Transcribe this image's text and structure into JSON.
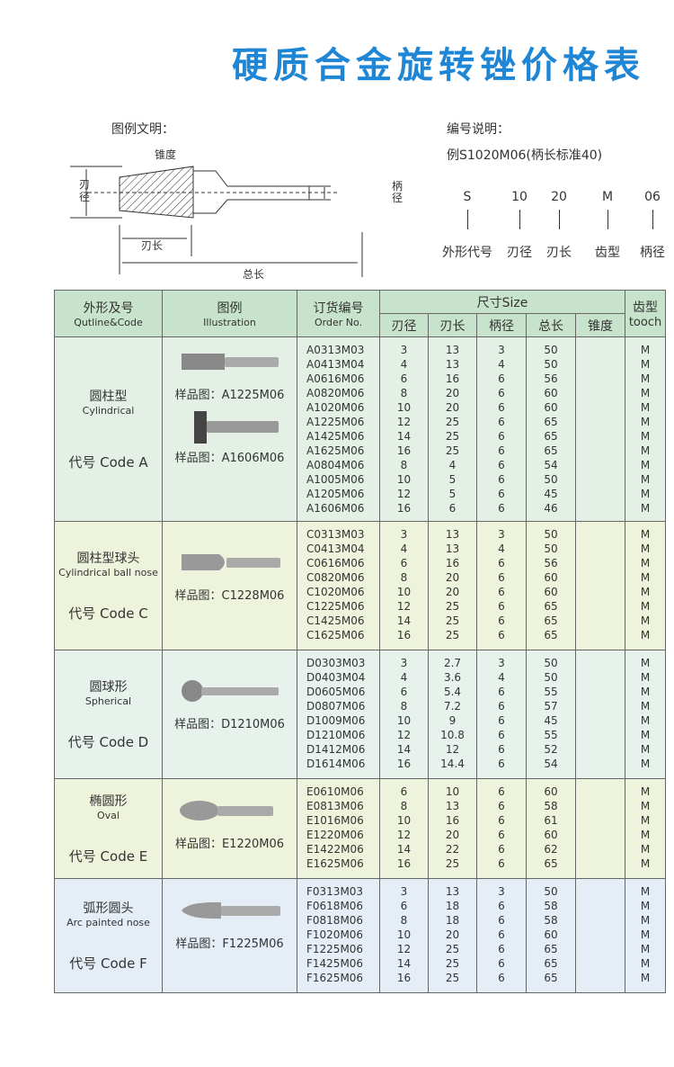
{
  "title": "硬质合金旋转锉价格表",
  "legend": {
    "heading": "图例文明：",
    "taper": "锥度",
    "blade_dia": "刃径",
    "shank_dia": "柄径",
    "blade_len": "刃长",
    "total_len": "总长"
  },
  "numbering": {
    "heading": "编号说明：",
    "example": "例S1020M06(柄长标准40)",
    "parts": [
      {
        "code": "S",
        "meaning": "外形代号"
      },
      {
        "code": "10",
        "meaning": "刃径"
      },
      {
        "code": "20",
        "meaning": "刃长"
      },
      {
        "code": "M",
        "meaning": "齿型"
      },
      {
        "code": "06",
        "meaning": "柄径"
      }
    ]
  },
  "table": {
    "headers": {
      "outline_cn": "外形及号",
      "outline_en": "Qutline&Code",
      "illus_cn": "图例",
      "illus_en": "Illustration",
      "order_cn": "订货编号",
      "order_en": "Order No.",
      "size": "尺寸Size",
      "blade_dia": "刃径",
      "blade_len": "刃长",
      "shank_dia": "柄径",
      "total_len": "总长",
      "taper": "锥度",
      "tooth_cn": "齿型",
      "tooth_en": "tooch"
    },
    "groups": [
      {
        "name_cn": "圆柱型",
        "name_en": "Cylindrical",
        "code": "代号 Code  A",
        "bg": "#e4f0e6",
        "samples": [
          "样品图：A1225M06",
          "样品图：A1606M06"
        ],
        "rows": [
          [
            "A0313M03",
            "3",
            "13",
            "3",
            "50",
            "",
            "M"
          ],
          [
            "A0413M04",
            "4",
            "13",
            "4",
            "50",
            "",
            "M"
          ],
          [
            "A0616M06",
            "6",
            "16",
            "6",
            "56",
            "",
            "M"
          ],
          [
            "A0820M06",
            "8",
            "20",
            "6",
            "60",
            "",
            "M"
          ],
          [
            "A1020M06",
            "10",
            "20",
            "6",
            "60",
            "",
            "M"
          ],
          [
            "A1225M06",
            "12",
            "25",
            "6",
            "65",
            "",
            "M"
          ],
          [
            "A1425M06",
            "14",
            "25",
            "6",
            "65",
            "",
            "M"
          ],
          [
            "A1625M06",
            "16",
            "25",
            "6",
            "65",
            "",
            "M"
          ],
          [
            "A0804M06",
            "8",
            "4",
            "6",
            "54",
            "",
            "M"
          ],
          [
            "A1005M06",
            "10",
            "5",
            "6",
            "50",
            "",
            "M"
          ],
          [
            "A1205M06",
            "12",
            "5",
            "6",
            "45",
            "",
            "M"
          ],
          [
            "A1606M06",
            "16",
            "6",
            "6",
            "46",
            "",
            "M"
          ]
        ]
      },
      {
        "name_cn": "圆柱型球头",
        "name_en": "Cylindrical ball nose",
        "code": "代号 Code C",
        "bg": "#eef4db",
        "samples": [
          "样品图：C1228M06"
        ],
        "rows": [
          [
            "C0313M03",
            "3",
            "13",
            "3",
            "50",
            "",
            "M"
          ],
          [
            "C0413M04",
            "4",
            "13",
            "4",
            "50",
            "",
            "M"
          ],
          [
            "C0616M06",
            "6",
            "16",
            "6",
            "56",
            "",
            "M"
          ],
          [
            "C0820M06",
            "8",
            "20",
            "6",
            "60",
            "",
            "M"
          ],
          [
            "C1020M06",
            "10",
            "20",
            "6",
            "60",
            "",
            "M"
          ],
          [
            "C1225M06",
            "12",
            "25",
            "6",
            "65",
            "",
            "M"
          ],
          [
            "C1425M06",
            "14",
            "25",
            "6",
            "65",
            "",
            "M"
          ],
          [
            "C1625M06",
            "16",
            "25",
            "6",
            "65",
            "",
            "M"
          ]
        ]
      },
      {
        "name_cn": "圆球形",
        "name_en": "Spherical",
        "code": "代号 Code D",
        "bg": "#e7f2ec",
        "samples": [
          "样品图：D1210M06"
        ],
        "rows": [
          [
            "D0303M03",
            "3",
            "2.7",
            "3",
            "50",
            "",
            "M"
          ],
          [
            "D0403M04",
            "4",
            "3.6",
            "4",
            "50",
            "",
            "M"
          ],
          [
            "D0605M06",
            "6",
            "5.4",
            "6",
            "55",
            "",
            "M"
          ],
          [
            "D0807M06",
            "8",
            "7.2",
            "6",
            "57",
            "",
            "M"
          ],
          [
            "D1009M06",
            "10",
            "9",
            "6",
            "45",
            "",
            "M"
          ],
          [
            "D1210M06",
            "12",
            "10.8",
            "6",
            "55",
            "",
            "M"
          ],
          [
            "D1412M06",
            "14",
            "12",
            "6",
            "52",
            "",
            "M"
          ],
          [
            "D1614M06",
            "16",
            "14.4",
            "6",
            "54",
            "",
            "M"
          ]
        ]
      },
      {
        "name_cn": "椭圆形",
        "name_en": "Oval",
        "code": "代号 Code E",
        "bg": "#eef4db",
        "samples": [
          "样品图：E1220M06"
        ],
        "rows": [
          [
            "E0610M06",
            "6",
            "10",
            "6",
            "60",
            "",
            "M"
          ],
          [
            "E0813M06",
            "8",
            "13",
            "6",
            "58",
            "",
            "M"
          ],
          [
            "E1016M06",
            "10",
            "16",
            "6",
            "61",
            "",
            "M"
          ],
          [
            "E1220M06",
            "12",
            "20",
            "6",
            "60",
            "",
            "M"
          ],
          [
            "E1422M06",
            "14",
            "22",
            "6",
            "62",
            "",
            "M"
          ],
          [
            "E1625M06",
            "16",
            "25",
            "6",
            "65",
            "",
            "M"
          ]
        ]
      },
      {
        "name_cn": "弧形圆头",
        "name_en": "Arc painted nose",
        "code": "代号 Code F",
        "bg": "#e5eef6",
        "samples": [
          "样品图：F1225M06"
        ],
        "rows": [
          [
            "F0313M03",
            "3",
            "13",
            "3",
            "50",
            "",
            "M"
          ],
          [
            "F0618M06",
            "6",
            "18",
            "6",
            "58",
            "",
            "M"
          ],
          [
            "F0818M06",
            "8",
            "18",
            "6",
            "58",
            "",
            "M"
          ],
          [
            "F1020M06",
            "10",
            "20",
            "6",
            "60",
            "",
            "M"
          ],
          [
            "F1225M06",
            "12",
            "25",
            "6",
            "65",
            "",
            "M"
          ],
          [
            "F1425M06",
            "14",
            "25",
            "6",
            "65",
            "",
            "M"
          ],
          [
            "F1625M06",
            "16",
            "25",
            "6",
            "65",
            "",
            "M"
          ]
        ]
      }
    ]
  }
}
